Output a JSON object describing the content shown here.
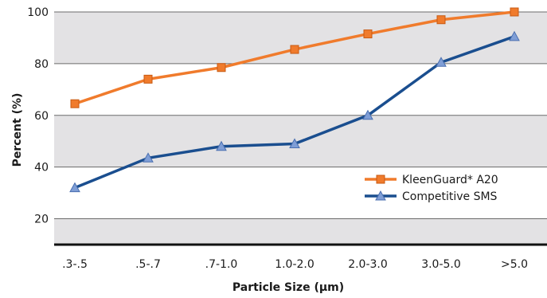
{
  "chart_data": {
    "type": "line",
    "categories": [
      ".3-.5",
      ".5-.7",
      ".7-1.0",
      "1.0-2.0",
      "2.0-3.0",
      "3.0-5.0",
      ">5.0"
    ],
    "series": [
      {
        "name": "KleenGuard* A20",
        "values": [
          64.5,
          74,
          78.5,
          85.5,
          91.5,
          97,
          100
        ],
        "color": "#f07b2c",
        "marker": "square"
      },
      {
        "name": "Competitive SMS",
        "values": [
          32,
          43.5,
          48,
          49,
          60,
          80.5,
          90.5
        ],
        "color": "#1a4e8f",
        "marker": "triangle"
      }
    ],
    "xlabel": "Particle Size (μm)",
    "ylabel": "Percent  (%)",
    "ylim": [
      10,
      100
    ],
    "yticks": [
      20,
      40,
      60,
      80,
      100
    ],
    "grid": "horizontal bands",
    "legend": "right",
    "colors": {
      "band_shaded": "#e3e2e4",
      "band_plain": "#ffffff",
      "gridline": "#6b6b6b",
      "baseline": "#111111"
    }
  }
}
